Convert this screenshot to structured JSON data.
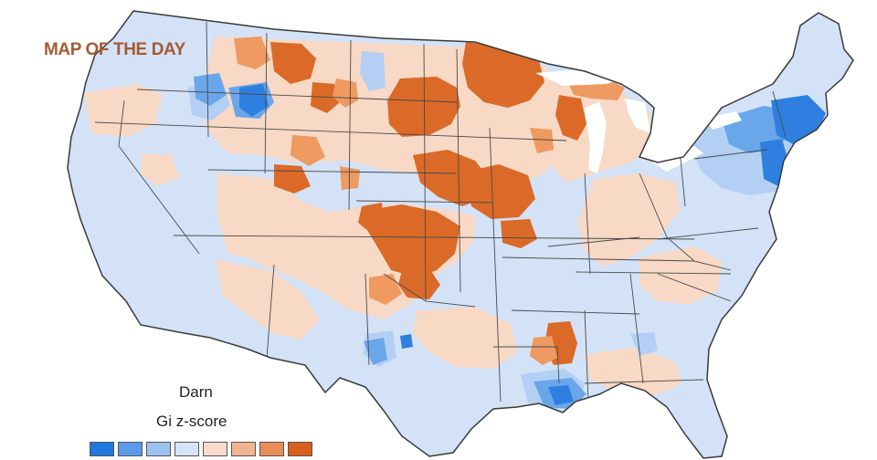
{
  "map": {
    "headline": "MAP OF THE DAY",
    "legend": {
      "title": "Darn",
      "subtitle": "Gi z-score",
      "swatches": [
        "#1f78e0",
        "#5a9ae8",
        "#9cc2f0",
        "#d6e4f8",
        "#f9dccb",
        "#f2b48e",
        "#ea8c55",
        "#d85f1e"
      ]
    },
    "colors": {
      "base_blue": "#d3e2f6",
      "light_orange": "#f8d9c6",
      "mid_orange": "#ee9a60",
      "dark_orange": "#db6a28",
      "light_blue": "#b3d0f4",
      "mid_blue": "#6aa6ea",
      "dark_blue": "#2e7fe0",
      "border": "#4a4a4a",
      "water": "#ffffff"
    }
  }
}
